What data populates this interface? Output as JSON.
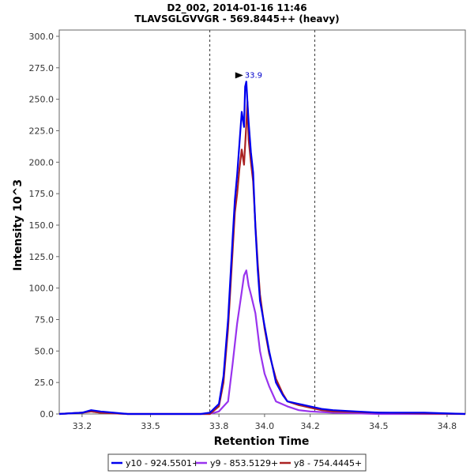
{
  "chart_data": {
    "type": "line",
    "title": "D2_002, 2014-01-16 11:46",
    "subtitle": "TLAVSGLGVVGR - 569.8445++ (heavy)",
    "xlabel": "Retention Time",
    "ylabel": "Intensity 10^3",
    "xlim": [
      33.1,
      34.88
    ],
    "ylim": [
      0,
      305
    ],
    "xticks": [
      33.2,
      33.5,
      33.8,
      34.0,
      34.2,
      34.5,
      34.8
    ],
    "xtick_labels": [
      "33.2",
      "33.5",
      "33.8",
      "34.0",
      "34.2",
      "34.5",
      "34.8"
    ],
    "yticks": [
      0,
      25,
      50,
      75,
      100,
      125,
      150,
      175,
      200,
      225,
      250,
      275,
      300
    ],
    "ytick_labels": [
      "0.0",
      "25.0",
      "50.0",
      "75.0",
      "100.0",
      "125.0",
      "150.0",
      "175.0",
      "200.0",
      "225.0",
      "250.0",
      "275.0",
      "300.0"
    ],
    "integration_boundaries": [
      33.76,
      34.22
    ],
    "peak_annotation": {
      "x": 33.92,
      "y": 264,
      "label": "33.9"
    },
    "series": [
      {
        "name": "y10 - 924.5501+",
        "color": "#0000ee",
        "x": [
          33.1,
          33.2,
          33.24,
          33.28,
          33.4,
          33.6,
          33.72,
          33.76,
          33.8,
          33.82,
          33.84,
          33.86,
          33.87,
          33.88,
          33.89,
          33.9,
          33.91,
          33.915,
          33.92,
          33.925,
          33.93,
          33.94,
          33.95,
          33.96,
          33.97,
          33.98,
          34.0,
          34.02,
          34.05,
          34.08,
          34.1,
          34.15,
          34.2,
          34.25,
          34.3,
          34.4,
          34.5,
          34.6,
          34.7,
          34.88
        ],
        "values": [
          0,
          1,
          3,
          2,
          0,
          0,
          0,
          1,
          8,
          30,
          75,
          140,
          170,
          190,
          215,
          240,
          228,
          260,
          264,
          248,
          232,
          208,
          192,
          148,
          115,
          90,
          70,
          50,
          25,
          15,
          10,
          8,
          6,
          4,
          3,
          2,
          1,
          1,
          1,
          0
        ]
      },
      {
        "name": "y9 - 853.5129+",
        "color": "#9933ee",
        "x": [
          33.1,
          33.2,
          33.24,
          33.28,
          33.4,
          33.6,
          33.76,
          33.8,
          33.84,
          33.86,
          33.88,
          33.9,
          33.91,
          33.92,
          33.93,
          33.94,
          33.96,
          33.98,
          34.0,
          34.02,
          34.05,
          34.1,
          34.15,
          34.2,
          34.3,
          34.5,
          34.88
        ],
        "values": [
          0,
          1,
          2,
          1,
          0,
          0,
          0,
          2,
          10,
          40,
          72,
          97,
          110,
          114,
          102,
          95,
          80,
          50,
          32,
          22,
          10,
          6,
          3,
          2,
          1,
          0,
          0
        ]
      },
      {
        "name": "y8 - 754.4445+",
        "color": "#aa2222",
        "x": [
          33.1,
          33.2,
          33.24,
          33.28,
          33.4,
          33.6,
          33.76,
          33.8,
          33.82,
          33.84,
          33.86,
          33.87,
          33.88,
          33.89,
          33.9,
          33.91,
          33.92,
          33.925,
          33.93,
          33.94,
          33.95,
          33.96,
          33.97,
          33.98,
          34.0,
          34.02,
          34.05,
          34.08,
          34.1,
          34.15,
          34.2,
          34.25,
          34.3,
          34.5,
          34.88
        ],
        "values": [
          0,
          1,
          2,
          1,
          0,
          0,
          0,
          6,
          25,
          68,
          130,
          160,
          175,
          195,
          210,
          198,
          230,
          248,
          218,
          200,
          185,
          150,
          120,
          95,
          68,
          48,
          28,
          16,
          10,
          7,
          5,
          3,
          2,
          1,
          0
        ]
      }
    ]
  }
}
